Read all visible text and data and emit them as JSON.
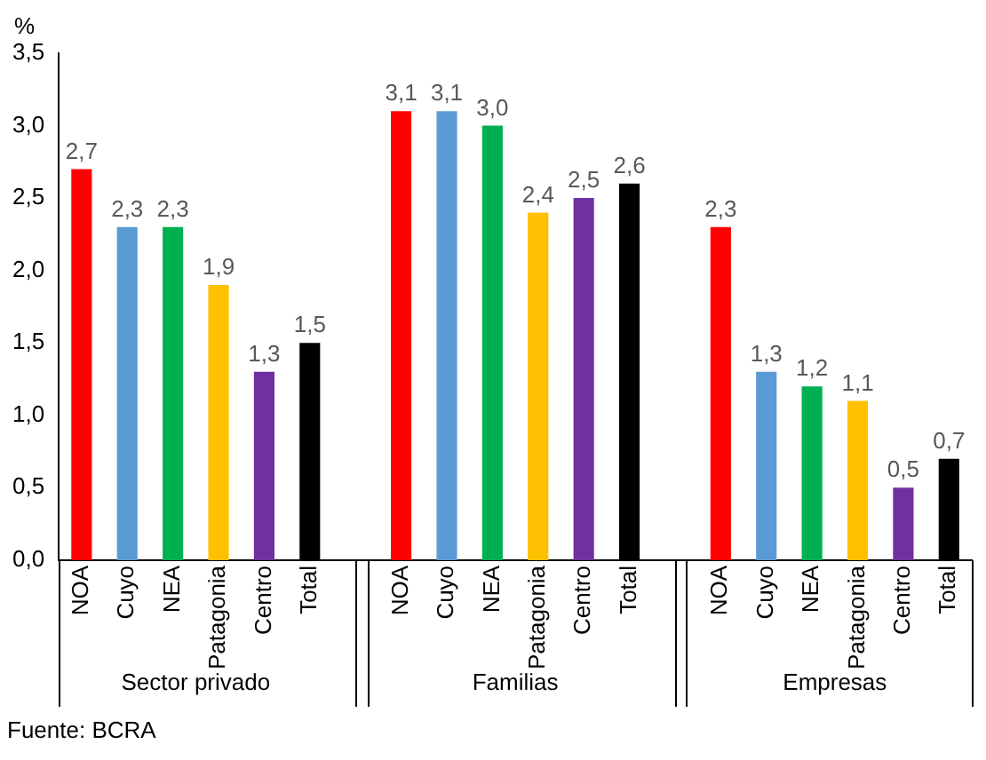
{
  "chart_data": {
    "type": "bar",
    "ylabel": "%",
    "categories": [
      "NOA",
      "Cuyo",
      "NEA",
      "Patagonia",
      "Centro",
      "Total",
      null,
      "NOA",
      "Cuyo",
      "NEA",
      "Patagonia",
      "Centro",
      "Total",
      null,
      "NOA",
      "Cuyo",
      "NEA",
      "Patagonia",
      "Centro",
      "Total"
    ],
    "values": [
      2.7,
      2.3,
      2.3,
      1.9,
      1.3,
      1.5,
      null,
      3.1,
      3.1,
      3.0,
      2.4,
      2.5,
      2.6,
      null,
      2.3,
      1.3,
      1.2,
      1.1,
      0.5,
      0.7
    ],
    "value_labels": [
      "2,7",
      "2,3",
      "2,3",
      "1,9",
      "1,3",
      "1,5",
      null,
      "3,1",
      "3,1",
      "3,0",
      "2,4",
      "2,5",
      "2,6",
      null,
      "2,3",
      "1,3",
      "1,2",
      "1,1",
      "0,5",
      "0,7"
    ],
    "colors": [
      "#ff0000",
      "#5b9bd5",
      "#00b050",
      "#ffc000",
      "#7030a0",
      "#000000",
      null,
      "#ff0000",
      "#5b9bd5",
      "#00b050",
      "#ffc000",
      "#7030a0",
      "#000000",
      null,
      "#ff0000",
      "#5b9bd5",
      "#00b050",
      "#ffc000",
      "#7030a0",
      "#000000"
    ],
    "ylim": [
      0,
      3.5
    ],
    "yticks": [
      {
        "value": 0,
        "label": "0,0"
      },
      {
        "value": 0.5,
        "label": "0,5"
      },
      {
        "value": 1,
        "label": "1,0"
      },
      {
        "value": 1.5,
        "label": "1,5"
      },
      {
        "value": 2,
        "label": "2,0"
      },
      {
        "value": 2.5,
        "label": "2,5"
      },
      {
        "value": 3,
        "label": "3,0"
      },
      {
        "value": 3.5,
        "label": "3,5"
      }
    ],
    "grid": false,
    "legend": false,
    "annotations": [
      "Sector privado",
      "Familias",
      "Empresas",
      "Fuente: BCRA"
    ]
  }
}
